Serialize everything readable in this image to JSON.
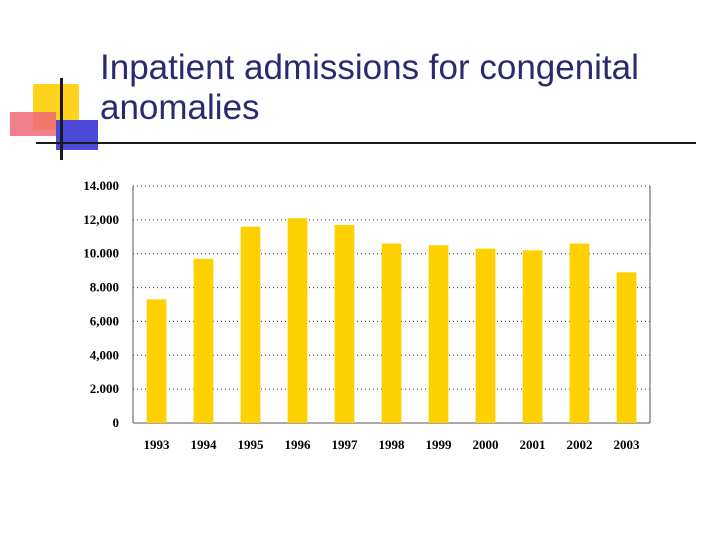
{
  "slide": {
    "title": "Inpatient admissions for congenital anomalies"
  },
  "colors": {
    "bar": "#ffd000",
    "title": "#2a2a6e",
    "grid": "#333333"
  },
  "chart_data": {
    "type": "bar",
    "title": "",
    "xlabel": "",
    "ylabel": "",
    "categories": [
      "1993",
      "1994",
      "1995",
      "1996",
      "1997",
      "1998",
      "1999",
      "2000",
      "2001",
      "2002",
      "2003"
    ],
    "values": [
      7300,
      9700,
      11600,
      12100,
      11700,
      10600,
      10500,
      10300,
      10200,
      10600,
      8900
    ],
    "ylim": [
      0,
      14000
    ],
    "yticks": [
      0,
      2000,
      4000,
      6000,
      8000,
      10000,
      12000,
      14000
    ],
    "ytick_labels": [
      "0",
      "2.000",
      "4,000",
      "6,000",
      "8.000",
      "10.000",
      "12,000",
      "14.000"
    ],
    "grid": true,
    "legend": "none"
  }
}
